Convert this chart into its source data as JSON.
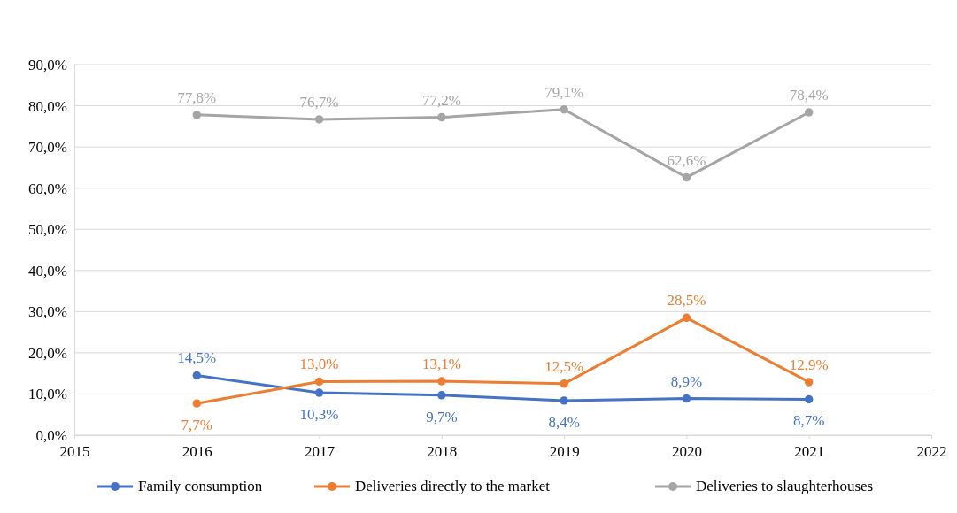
{
  "chart_data": {
    "type": "line",
    "x": [
      2016,
      2017,
      2018,
      2019,
      2020,
      2021
    ],
    "xlim": [
      2015,
      2022
    ],
    "xticks": [
      2015,
      2016,
      2017,
      2018,
      2019,
      2020,
      2021,
      2022
    ],
    "ylim": [
      0,
      90
    ],
    "yticks": [
      {
        "value": 0,
        "label": "0,0%"
      },
      {
        "value": 10,
        "label": "10,0%"
      },
      {
        "value": 20,
        "label": "20,0%"
      },
      {
        "value": 30,
        "label": "30,0%"
      },
      {
        "value": 40,
        "label": "40,0%"
      },
      {
        "value": 50,
        "label": "50,0%"
      },
      {
        "value": 60,
        "label": "60,0%"
      },
      {
        "value": 70,
        "label": "70,0%"
      },
      {
        "value": 80,
        "label": "80,0%"
      },
      {
        "value": 90,
        "label": "90,0%"
      }
    ],
    "grid": "y",
    "legend": "bottom",
    "marker": "circle",
    "line_style": "solid",
    "series": [
      {
        "name": "Family consumption",
        "color": "#4472c4",
        "values": [
          14.5,
          10.3,
          9.7,
          8.4,
          8.9,
          8.7
        ],
        "value_labels": [
          "14,5%",
          "10,3%",
          "9,7%",
          "8,4%",
          "8,9%",
          "8,7%"
        ]
      },
      {
        "name": "Deliveries directly to the market",
        "color": "#ed7d31",
        "values": [
          7.7,
          13.0,
          13.1,
          12.5,
          28.5,
          12.9
        ],
        "value_labels": [
          "7,7%",
          "13,0%",
          "13,1%",
          "12,5%",
          "28,5%",
          "12,9%"
        ]
      },
      {
        "name": "Deliveries to slaughterhouses",
        "color": "#a5a5a5",
        "values": [
          77.8,
          76.7,
          77.2,
          79.1,
          62.6,
          78.4
        ],
        "value_labels": [
          "77,8%",
          "76,7%",
          "77,2%",
          "79,1%",
          "62,6%",
          "78,4%"
        ]
      }
    ]
  }
}
